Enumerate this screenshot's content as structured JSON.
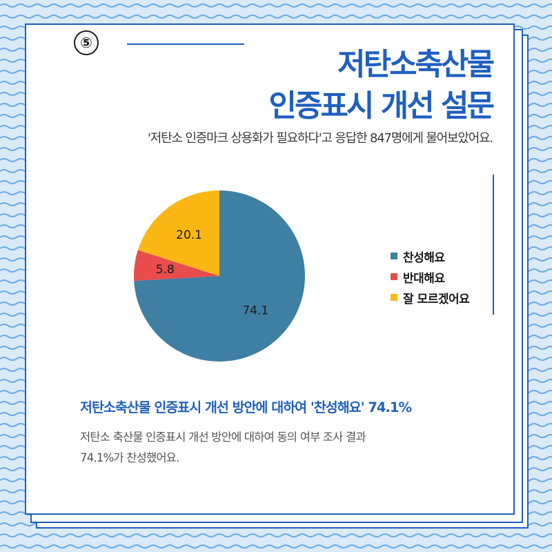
{
  "colors": {
    "accent": "#1f5fbf",
    "agree": "#3e7fa3",
    "disagree": "#e84c4c",
    "unsure": "#fdb714",
    "background": "#dbeaf7",
    "wave": "#6aaae8"
  },
  "badge": {
    "number": "⑤"
  },
  "title": {
    "line1": "저탄소축산물",
    "line2": "인증표시 개선 설문"
  },
  "subtitle": "'저탄소 인증마크 상용화가 필요하다'고 응답한 847명에게 물어보았어요.",
  "chart_data": {
    "type": "pie",
    "categories": [
      "찬성해요",
      "반대해요",
      "잘 모르겠어요"
    ],
    "values": [
      74.1,
      5.8,
      20.1
    ],
    "labels": [
      "74.1",
      "5.8",
      "20.1"
    ],
    "colors": [
      "#3e7fa3",
      "#e84c4c",
      "#fdb714"
    ],
    "legend_position": "right",
    "start_angle": "12 o'clock",
    "direction": "clockwise"
  },
  "legend": {
    "items": [
      {
        "label": "찬성해요",
        "color": "#3e7fa3"
      },
      {
        "label": "반대해요",
        "color": "#e84c4c"
      },
      {
        "label": "잘 모르겠어요",
        "color": "#fdb714"
      }
    ]
  },
  "result": {
    "title": "저탄소축산물 인증표시 개선 방안에 대하여 '찬성해요' 74.1%",
    "body_line1": "저탄소 축산물 인증표시 개선 방안에 대하여 동의 여부 조사 결과",
    "body_line2": "74.1%가 찬성했어요."
  }
}
